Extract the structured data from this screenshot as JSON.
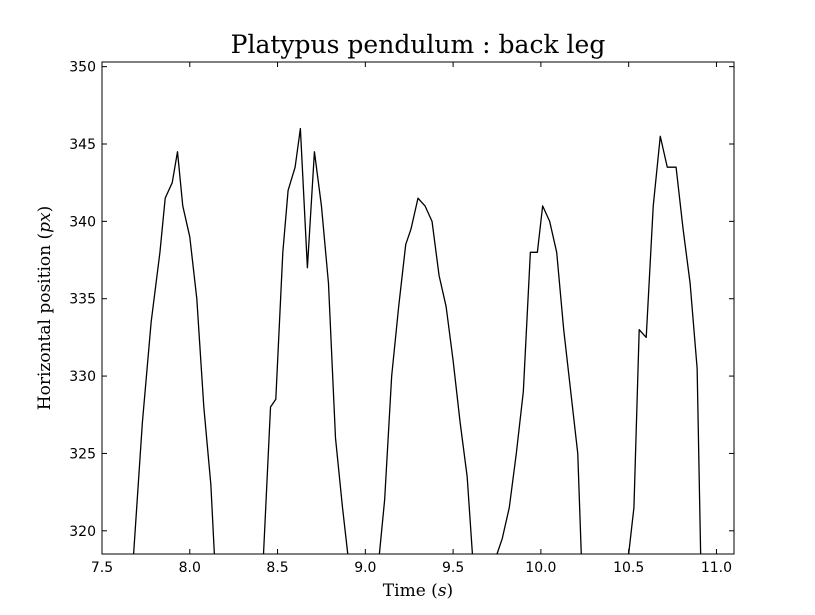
{
  "chart_data": {
    "type": "line",
    "title": "Platypus pendulum : back leg",
    "xlabel": {
      "text": "Time ",
      "var": "s"
    },
    "ylabel": {
      "text": "Horizontal position ",
      "var": "px"
    },
    "xlim": [
      7.5,
      11.1
    ],
    "ylim": [
      318.5,
      350.3
    ],
    "xticks": [
      7.5,
      8.0,
      8.5,
      9.0,
      9.5,
      10.0,
      10.5,
      11.0
    ],
    "xtick_labels": [
      "7.5",
      "8.0",
      "8.5",
      "9.0",
      "9.5",
      "10.0",
      "10.5",
      "11.0"
    ],
    "yticks": [
      320,
      325,
      330,
      335,
      340,
      345,
      350
    ],
    "ytick_labels": [
      "320",
      "325",
      "330",
      "335",
      "340",
      "345",
      "350"
    ],
    "grid": false,
    "line_color": "#000000",
    "segments": [
      {
        "x": [
          7.68,
          7.73,
          7.78,
          7.83,
          7.86,
          7.9,
          7.93,
          7.96,
          8.0,
          8.04,
          8.08,
          8.12,
          8.14
        ],
        "y": [
          318.5,
          327.0,
          333.5,
          338.0,
          341.5,
          342.5,
          344.5,
          341.0,
          339.0,
          335.0,
          328.0,
          323.0,
          318.5
        ]
      },
      {
        "x": [
          8.42,
          8.46,
          8.49,
          8.53,
          8.56,
          8.6,
          8.63,
          8.67,
          8.71,
          8.75,
          8.79,
          8.83,
          8.87,
          8.9
        ],
        "y": [
          318.5,
          328.0,
          328.5,
          338.0,
          342.0,
          343.5,
          346.0,
          337.0,
          344.5,
          341.0,
          336.0,
          326.0,
          321.5,
          318.5
        ]
      },
      {
        "x": [
          9.08,
          9.11,
          9.15,
          9.19,
          9.23,
          9.26,
          9.3,
          9.34,
          9.38,
          9.42,
          9.46,
          9.5,
          9.54,
          9.58,
          9.61
        ],
        "y": [
          318.5,
          322.0,
          330.0,
          334.5,
          338.5,
          339.5,
          341.5,
          341.0,
          340.0,
          336.5,
          334.5,
          331.0,
          327.0,
          323.5,
          318.5
        ]
      },
      {
        "x": [
          9.75,
          9.78,
          9.82,
          9.86,
          9.9,
          9.94,
          9.98,
          10.01,
          10.05,
          10.09,
          10.13,
          10.17,
          10.21,
          10.23
        ],
        "y": [
          318.5,
          319.5,
          321.5,
          325.0,
          329.0,
          338.0,
          338.0,
          341.0,
          340.0,
          338.0,
          333.0,
          329.0,
          325.0,
          318.5
        ]
      },
      {
        "x": [
          10.5,
          10.53,
          10.56,
          10.6,
          10.64,
          10.68,
          10.72,
          10.77,
          10.81,
          10.85,
          10.89,
          10.91
        ],
        "y": [
          318.5,
          321.5,
          333.0,
          332.5,
          341.0,
          345.5,
          343.5,
          343.5,
          339.5,
          336.0,
          330.5,
          318.5
        ]
      }
    ]
  }
}
